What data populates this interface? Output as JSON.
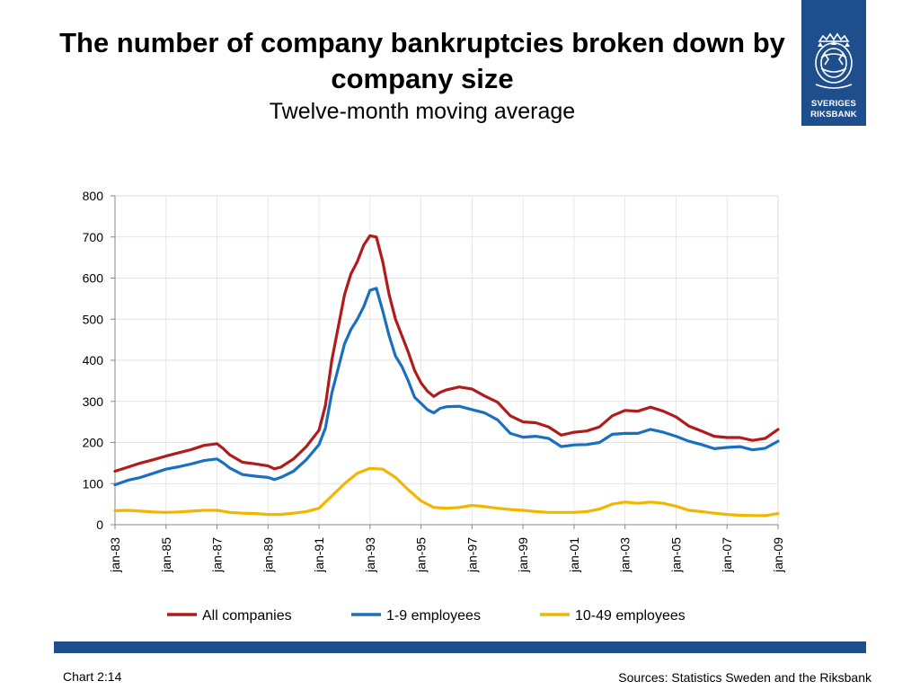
{
  "slide": {
    "title": "The number of company bankruptcies broken down by company size",
    "subtitle": "Twelve-month moving average",
    "logo": {
      "line1": "SVERIGES",
      "line2": "RIKSBANK"
    },
    "footer": {
      "chart_no": "Chart 2:14",
      "sources": "Sources: Statistics Sweden and the Riksbank"
    }
  },
  "chart_data": {
    "type": "line",
    "ylim": [
      0,
      800
    ],
    "yticks": [
      0,
      100,
      200,
      300,
      400,
      500,
      600,
      700,
      800
    ],
    "xlim": [
      "1983-01",
      "2009-01"
    ],
    "xticks": [
      "jan-83",
      "jan-85",
      "jan-87",
      "jan-89",
      "jan-91",
      "jan-93",
      "jan-95",
      "jan-97",
      "jan-99",
      "jan-01",
      "jan-03",
      "jan-05",
      "jan-07",
      "jan-09"
    ],
    "grid": true,
    "legend": "bottom",
    "series": [
      {
        "name": "All companies",
        "color": "#b01c1c",
        "points": [
          [
            "1983-01",
            130
          ],
          [
            "1983-07",
            140
          ],
          [
            "1984-01",
            150
          ],
          [
            "1984-07",
            158
          ],
          [
            "1985-01",
            167
          ],
          [
            "1985-07",
            175
          ],
          [
            "1986-01",
            183
          ],
          [
            "1986-07",
            193
          ],
          [
            "1987-01",
            197
          ],
          [
            "1987-04",
            185
          ],
          [
            "1987-07",
            170
          ],
          [
            "1988-01",
            152
          ],
          [
            "1988-07",
            148
          ],
          [
            "1989-01",
            143
          ],
          [
            "1989-04",
            136
          ],
          [
            "1989-07",
            140
          ],
          [
            "1990-01",
            160
          ],
          [
            "1990-07",
            190
          ],
          [
            "1991-01",
            230
          ],
          [
            "1991-04",
            290
          ],
          [
            "1991-07",
            400
          ],
          [
            "1991-10",
            480
          ],
          [
            "1992-01",
            560
          ],
          [
            "1992-04",
            610
          ],
          [
            "1992-07",
            640
          ],
          [
            "1992-10",
            680
          ],
          [
            "1993-01",
            703
          ],
          [
            "1993-04",
            700
          ],
          [
            "1993-07",
            640
          ],
          [
            "1993-10",
            560
          ],
          [
            "1994-01",
            500
          ],
          [
            "1994-04",
            460
          ],
          [
            "1994-07",
            420
          ],
          [
            "1994-10",
            375
          ],
          [
            "1995-01",
            345
          ],
          [
            "1995-04",
            325
          ],
          [
            "1995-07",
            312
          ],
          [
            "1995-10",
            322
          ],
          [
            "1996-01",
            328
          ],
          [
            "1996-07",
            335
          ],
          [
            "1997-01",
            330
          ],
          [
            "1997-07",
            313
          ],
          [
            "1998-01",
            298
          ],
          [
            "1998-07",
            265
          ],
          [
            "1999-01",
            250
          ],
          [
            "1999-07",
            248
          ],
          [
            "2000-01",
            238
          ],
          [
            "2000-07",
            218
          ],
          [
            "2001-01",
            225
          ],
          [
            "2001-07",
            228
          ],
          [
            "2002-01",
            238
          ],
          [
            "2002-07",
            265
          ],
          [
            "2003-01",
            278
          ],
          [
            "2003-07",
            276
          ],
          [
            "2004-01",
            286
          ],
          [
            "2004-07",
            276
          ],
          [
            "2005-01",
            262
          ],
          [
            "2005-07",
            240
          ],
          [
            "2006-01",
            228
          ],
          [
            "2006-07",
            215
          ],
          [
            "2007-01",
            212
          ],
          [
            "2007-07",
            212
          ],
          [
            "2008-01",
            205
          ],
          [
            "2008-07",
            210
          ],
          [
            "2009-01",
            232
          ]
        ]
      },
      {
        "name": "1-9 employees",
        "color": "#1a6fc1",
        "points": [
          [
            "1983-01",
            97
          ],
          [
            "1983-07",
            108
          ],
          [
            "1984-01",
            115
          ],
          [
            "1984-07",
            125
          ],
          [
            "1985-01",
            135
          ],
          [
            "1985-07",
            141
          ],
          [
            "1986-01",
            148
          ],
          [
            "1986-07",
            156
          ],
          [
            "1987-01",
            160
          ],
          [
            "1987-04",
            150
          ],
          [
            "1987-07",
            138
          ],
          [
            "1988-01",
            122
          ],
          [
            "1988-07",
            118
          ],
          [
            "1989-01",
            115
          ],
          [
            "1989-04",
            110
          ],
          [
            "1989-07",
            115
          ],
          [
            "1990-01",
            130
          ],
          [
            "1990-07",
            158
          ],
          [
            "1991-01",
            195
          ],
          [
            "1991-04",
            235
          ],
          [
            "1991-07",
            320
          ],
          [
            "1991-10",
            380
          ],
          [
            "1992-01",
            440
          ],
          [
            "1992-04",
            475
          ],
          [
            "1992-07",
            500
          ],
          [
            "1992-10",
            530
          ],
          [
            "1993-01",
            570
          ],
          [
            "1993-04",
            575
          ],
          [
            "1993-07",
            520
          ],
          [
            "1993-10",
            460
          ],
          [
            "1994-01",
            410
          ],
          [
            "1994-04",
            385
          ],
          [
            "1994-07",
            350
          ],
          [
            "1994-10",
            310
          ],
          [
            "1995-01",
            295
          ],
          [
            "1995-04",
            280
          ],
          [
            "1995-07",
            272
          ],
          [
            "1995-10",
            283
          ],
          [
            "1996-01",
            287
          ],
          [
            "1996-07",
            288
          ],
          [
            "1997-01",
            280
          ],
          [
            "1997-07",
            272
          ],
          [
            "1998-01",
            255
          ],
          [
            "1998-07",
            222
          ],
          [
            "1999-01",
            213
          ],
          [
            "1999-07",
            215
          ],
          [
            "2000-01",
            210
          ],
          [
            "2000-07",
            190
          ],
          [
            "2001-01",
            194
          ],
          [
            "2001-07",
            195
          ],
          [
            "2002-01",
            200
          ],
          [
            "2002-07",
            220
          ],
          [
            "2003-01",
            222
          ],
          [
            "2003-07",
            222
          ],
          [
            "2004-01",
            232
          ],
          [
            "2004-07",
            225
          ],
          [
            "2005-01",
            215
          ],
          [
            "2005-07",
            203
          ],
          [
            "2006-01",
            195
          ],
          [
            "2006-07",
            185
          ],
          [
            "2007-01",
            188
          ],
          [
            "2007-07",
            190
          ],
          [
            "2008-01",
            182
          ],
          [
            "2008-07",
            186
          ],
          [
            "2009-01",
            203
          ]
        ]
      },
      {
        "name": "10-49 employees",
        "color": "#f2b600",
        "points": [
          [
            "1983-01",
            34
          ],
          [
            "1983-07",
            35
          ],
          [
            "1984-01",
            33
          ],
          [
            "1984-07",
            31
          ],
          [
            "1985-01",
            30
          ],
          [
            "1985-07",
            31
          ],
          [
            "1986-01",
            33
          ],
          [
            "1986-07",
            35
          ],
          [
            "1987-01",
            35
          ],
          [
            "1987-07",
            30
          ],
          [
            "1988-01",
            28
          ],
          [
            "1988-07",
            27
          ],
          [
            "1989-01",
            25
          ],
          [
            "1989-07",
            25
          ],
          [
            "1990-01",
            28
          ],
          [
            "1990-07",
            32
          ],
          [
            "1991-01",
            40
          ],
          [
            "1991-07",
            70
          ],
          [
            "1992-01",
            100
          ],
          [
            "1992-07",
            125
          ],
          [
            "1993-01",
            137
          ],
          [
            "1993-07",
            135
          ],
          [
            "1994-01",
            115
          ],
          [
            "1994-07",
            85
          ],
          [
            "1995-01",
            58
          ],
          [
            "1995-07",
            42
          ],
          [
            "1996-01",
            40
          ],
          [
            "1996-07",
            42
          ],
          [
            "1997-01",
            47
          ],
          [
            "1997-07",
            44
          ],
          [
            "1998-01",
            40
          ],
          [
            "1998-07",
            37
          ],
          [
            "1999-01",
            35
          ],
          [
            "1999-07",
            32
          ],
          [
            "2000-01",
            30
          ],
          [
            "2000-07",
            30
          ],
          [
            "2001-01",
            30
          ],
          [
            "2001-07",
            32
          ],
          [
            "2002-01",
            38
          ],
          [
            "2002-07",
            50
          ],
          [
            "2003-01",
            55
          ],
          [
            "2003-07",
            52
          ],
          [
            "2004-01",
            55
          ],
          [
            "2004-07",
            52
          ],
          [
            "2005-01",
            45
          ],
          [
            "2005-07",
            35
          ],
          [
            "2006-01",
            32
          ],
          [
            "2006-07",
            28
          ],
          [
            "2007-01",
            25
          ],
          [
            "2007-07",
            23
          ],
          [
            "2008-01",
            22
          ],
          [
            "2008-07",
            22
          ],
          [
            "2009-01",
            27
          ]
        ]
      }
    ]
  }
}
